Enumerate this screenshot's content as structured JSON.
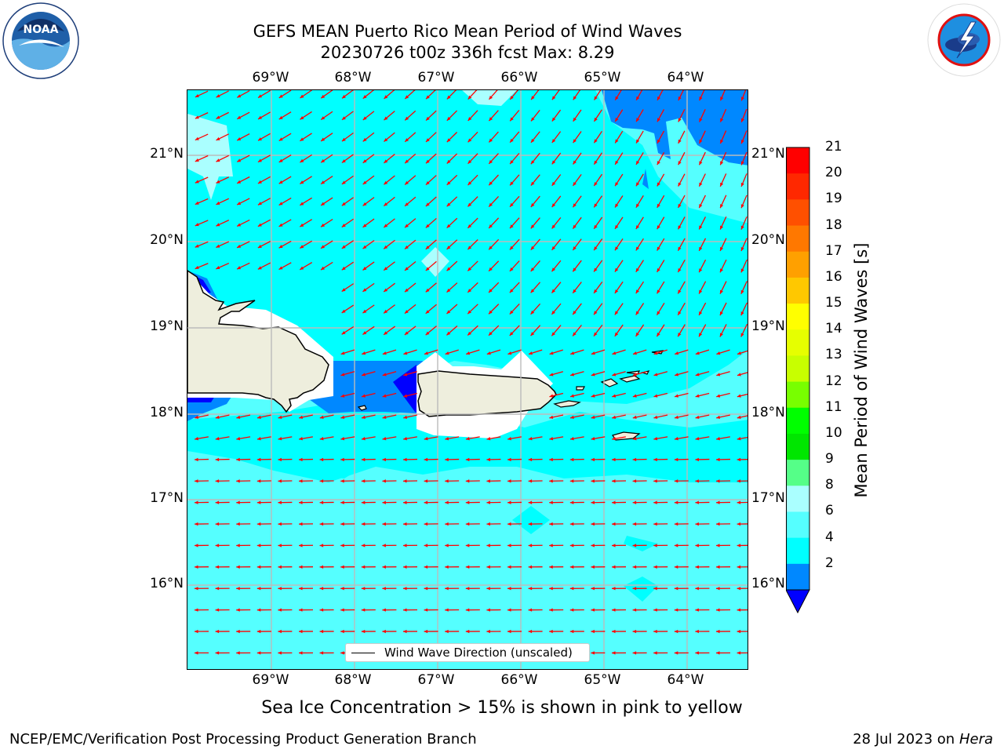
{
  "title_line1": "GEFS MEAN Puerto Rico Mean Period of Wind Waves",
  "title_line2": "20230726 t00z 336h fcst   Max: 8.29",
  "lon_labels": [
    "69°W",
    "68°W",
    "67°W",
    "66°W",
    "65°W",
    "64°W"
  ],
  "lat_labels": [
    "21°N",
    "20°N",
    "19°N",
    "18°N",
    "17°N",
    "16°N"
  ],
  "legend_label": "Wind Wave Direction (unscaled)",
  "colorbar": {
    "label": "Mean Period of Wind Waves [s]",
    "ticks": [
      "21",
      "20",
      "19",
      "18",
      "17",
      "16",
      "15",
      "14",
      "13",
      "12",
      "11",
      "10",
      "9",
      "8",
      "6",
      "4",
      "2"
    ],
    "colors": [
      "#ff0000",
      "#ff2800",
      "#ff5000",
      "#ff7800",
      "#ffa000",
      "#ffc800",
      "#ffff00",
      "#e6ff00",
      "#c8ff00",
      "#78ff00",
      "#00ff00",
      "#00e600",
      "#55ff88",
      "#aaffff",
      "#55ffff",
      "#00ffff",
      "#0088ff"
    ],
    "under_color": "#0000ff"
  },
  "sea_ice_note": "Sea Ice Concentration > 15% is shown in pink to yellow",
  "footer_left": "NCEP/EMC/Verification Post Processing Product Generation Branch",
  "footer_date": "28 Jul 2023 on ",
  "footer_host": "Hera",
  "logos": {
    "noaa": "NOAA",
    "nws_ring": "NATIONAL WEATHER SERVICE",
    "noaa_ring": "NATIONAL OCEANIC AND ATMOSPHERIC ADMINISTRATION"
  },
  "colors": {
    "arrow": "#ff0000",
    "land": "#eeeedd",
    "grid": "#bbbbbb"
  }
}
